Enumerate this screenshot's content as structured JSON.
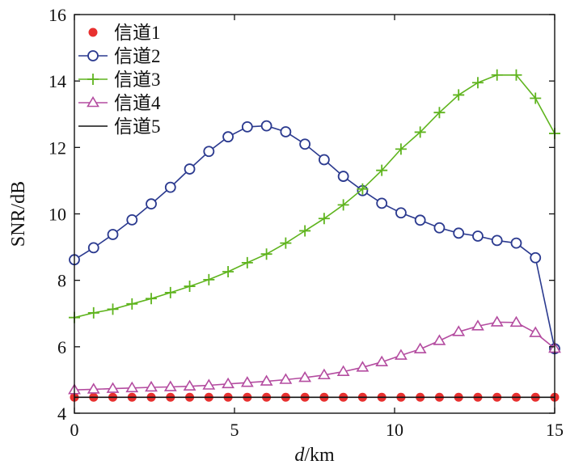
{
  "chart_data": {
    "type": "line",
    "title": "",
    "xlabel_italic": "d",
    "xlabel_unit": "/km",
    "ylabel": "SNR/dB",
    "xlim": [
      0,
      15
    ],
    "ylim": [
      4,
      16
    ],
    "xticks": [
      0,
      5,
      10,
      15
    ],
    "yticks": [
      4,
      6,
      8,
      10,
      12,
      14,
      16
    ],
    "legend_position": "top-left",
    "x": [
      0,
      0.6,
      1.2,
      1.8,
      2.4,
      3.0,
      3.6,
      4.2,
      4.8,
      5.4,
      6.0,
      6.6,
      7.2,
      7.8,
      8.4,
      9.0,
      9.6,
      10.2,
      10.8,
      11.4,
      12.0,
      12.6,
      13.2,
      13.8,
      14.4,
      15.0
    ],
    "series": [
      {
        "name": "信道1",
        "color": "#e8302f",
        "marker": "dot",
        "line": false,
        "values": [
          4.48,
          4.48,
          4.48,
          4.48,
          4.48,
          4.48,
          4.48,
          4.48,
          4.48,
          4.48,
          4.48,
          4.48,
          4.48,
          4.48,
          4.48,
          4.48,
          4.48,
          4.48,
          4.48,
          4.48,
          4.48,
          4.48,
          4.48,
          4.48,
          4.48,
          4.48
        ]
      },
      {
        "name": "信道2",
        "color": "#2b3a8f",
        "marker": "circle",
        "line": true,
        "values": [
          8.62,
          8.98,
          9.38,
          9.82,
          10.3,
          10.8,
          11.35,
          11.88,
          12.32,
          12.62,
          12.65,
          12.47,
          12.1,
          11.63,
          11.13,
          10.7,
          10.32,
          10.03,
          9.81,
          9.58,
          9.42,
          9.33,
          9.2,
          9.12,
          8.68,
          5.94
        ]
      },
      {
        "name": "信道3",
        "color": "#5fb41e",
        "marker": "plus",
        "line": true,
        "values": [
          6.88,
          7.02,
          7.13,
          7.29,
          7.45,
          7.63,
          7.82,
          8.02,
          8.26,
          8.53,
          8.79,
          9.12,
          9.49,
          9.86,
          10.27,
          10.75,
          11.31,
          11.95,
          12.46,
          13.05,
          13.58,
          13.95,
          14.18,
          14.18,
          13.48,
          12.42
        ]
      },
      {
        "name": "信道4",
        "color": "#b44ca0",
        "marker": "triangle",
        "line": true,
        "values": [
          4.7,
          4.72,
          4.74,
          4.76,
          4.78,
          4.79,
          4.81,
          4.84,
          4.88,
          4.92,
          4.96,
          5.01,
          5.07,
          5.15,
          5.25,
          5.38,
          5.54,
          5.74,
          5.93,
          6.18,
          6.45,
          6.62,
          6.74,
          6.73,
          6.42,
          5.95
        ]
      },
      {
        "name": "信道5",
        "color": "#111111",
        "marker": "none",
        "line": true,
        "values": [
          4.48,
          4.48,
          4.48,
          4.48,
          4.48,
          4.48,
          4.48,
          4.48,
          4.48,
          4.48,
          4.48,
          4.48,
          4.48,
          4.48,
          4.48,
          4.48,
          4.48,
          4.48,
          4.48,
          4.48,
          4.48,
          4.48,
          4.48,
          4.48,
          4.48,
          4.48
        ]
      }
    ]
  }
}
